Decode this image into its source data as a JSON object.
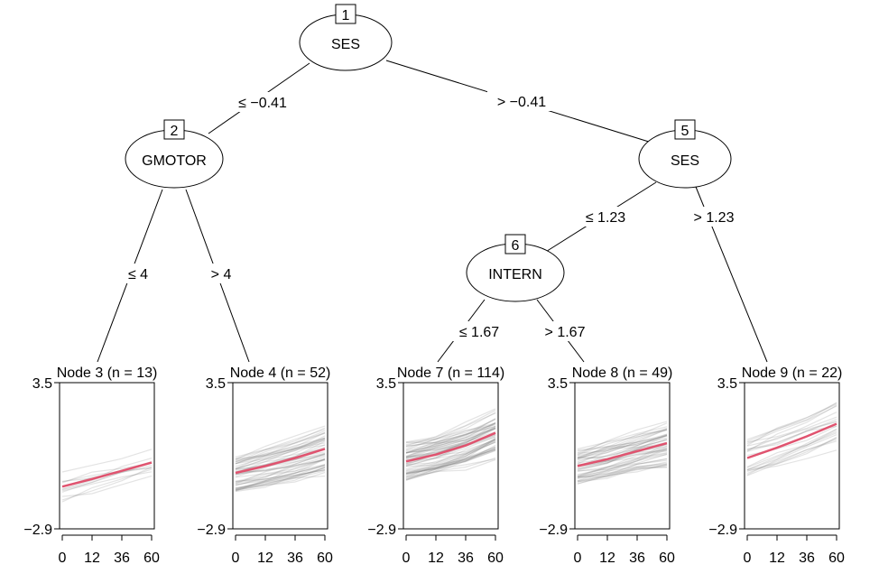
{
  "tree": {
    "nodes": [
      {
        "id": "1",
        "label": "SES"
      },
      {
        "id": "2",
        "label": "GMOTOR"
      },
      {
        "id": "5",
        "label": "SES"
      },
      {
        "id": "6",
        "label": "INTERN"
      }
    ],
    "edges": [
      {
        "label": "≤ −0.41"
      },
      {
        "label": "> −0.41"
      },
      {
        "label": "≤ 4"
      },
      {
        "label": "> 4"
      },
      {
        "label": "≤ 1.23"
      },
      {
        "label": "> 1.23"
      },
      {
        "label": "≤ 1.67"
      },
      {
        "label": "> 1.67"
      }
    ]
  },
  "chart_data": [
    {
      "type": "line",
      "title": "Node 3 (n = 13)",
      "x": [
        0,
        12,
        36,
        60
      ],
      "ylim": [
        -2.9,
        3.5
      ],
      "yticks": [
        "3.5",
        "−2.9"
      ],
      "xticks": [
        "0",
        "12",
        "36",
        "60"
      ],
      "mean": [
        -1.05,
        -0.72,
        -0.36,
        0.0
      ],
      "n_individual": 13,
      "spread": 0.45,
      "accent": "#e0536f"
    },
    {
      "type": "line",
      "title": "Node 4 (n = 52)",
      "x": [
        0,
        12,
        36,
        60
      ],
      "ylim": [
        -2.9,
        3.5
      ],
      "yticks": [
        "3.5",
        "−2.9"
      ],
      "xticks": [
        "0",
        "12",
        "36",
        "60"
      ],
      "mean": [
        -0.45,
        -0.15,
        0.2,
        0.6
      ],
      "n_individual": 52,
      "spread": 0.5,
      "accent": "#e0536f"
    },
    {
      "type": "line",
      "title": "Node 7 (n = 114)",
      "x": [
        0,
        12,
        36,
        60
      ],
      "ylim": [
        -2.9,
        3.5
      ],
      "yticks": [
        "3.5",
        "−2.9"
      ],
      "xticks": [
        "0",
        "12",
        "36",
        "60"
      ],
      "mean": [
        0.05,
        0.35,
        0.75,
        1.3
      ],
      "n_individual": 114,
      "spread": 0.5,
      "accent": "#e0536f"
    },
    {
      "type": "line",
      "title": "Node 8 (n = 49)",
      "x": [
        0,
        12,
        36,
        60
      ],
      "ylim": [
        -2.9,
        3.5
      ],
      "yticks": [
        "3.5",
        "−2.9"
      ],
      "xticks": [
        "0",
        "12",
        "36",
        "60"
      ],
      "mean": [
        -0.15,
        0.15,
        0.5,
        0.85
      ],
      "n_individual": 49,
      "spread": 0.45,
      "accent": "#e0536f"
    },
    {
      "type": "line",
      "title": "Node 9 (n = 22)",
      "x": [
        0,
        12,
        36,
        60
      ],
      "ylim": [
        -2.9,
        3.5
      ],
      "yticks": [
        "3.5",
        "−2.9"
      ],
      "xticks": [
        "0",
        "12",
        "36",
        "60"
      ],
      "mean": [
        0.2,
        0.65,
        1.15,
        1.7
      ],
      "n_individual": 22,
      "spread": 0.45,
      "accent": "#e0536f"
    }
  ]
}
